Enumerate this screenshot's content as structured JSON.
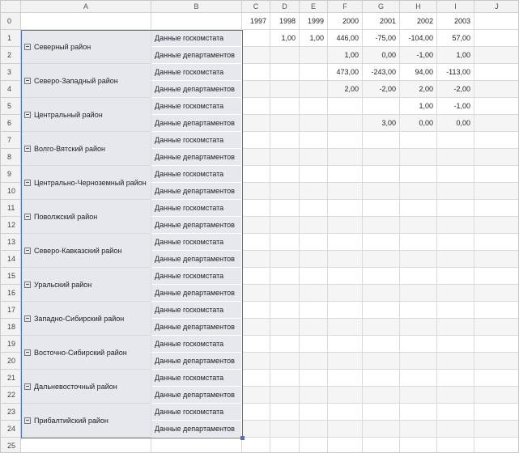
{
  "columns": [
    "A",
    "B",
    "C",
    "D",
    "E",
    "F",
    "G",
    "H",
    "I",
    "J"
  ],
  "row_numbers": [
    0,
    1,
    2,
    3,
    4,
    5,
    6,
    7,
    8,
    9,
    10,
    11,
    12,
    13,
    14,
    15,
    16,
    17,
    18,
    19,
    20,
    21,
    22,
    23,
    24,
    25
  ],
  "years": [
    1997,
    1998,
    1999,
    2000,
    2001,
    2002,
    2003
  ],
  "regions": [
    {
      "name": "Северный район",
      "rows": [
        {
          "source": "Данные госкомстата",
          "values": [
            null,
            "1,00",
            "1,00",
            "446,00",
            "-75,00",
            "-104,00",
            "57,00"
          ]
        },
        {
          "source": "Данные департаментов",
          "values": [
            null,
            null,
            null,
            "1,00",
            "0,00",
            "-1,00",
            "1,00"
          ]
        }
      ]
    },
    {
      "name": "Северо-Западный район",
      "rows": [
        {
          "source": "Данные госкомстата",
          "values": [
            null,
            null,
            null,
            "473,00",
            "-243,00",
            "94,00",
            "-113,00"
          ]
        },
        {
          "source": "Данные департаментов",
          "values": [
            null,
            null,
            null,
            "2,00",
            "-2,00",
            "2,00",
            "-2,00"
          ]
        }
      ]
    },
    {
      "name": "Центральный район",
      "rows": [
        {
          "source": "Данные госкомстата",
          "values": [
            null,
            null,
            null,
            null,
            null,
            "1,00",
            "-1,00"
          ]
        },
        {
          "source": "Данные департаментов",
          "values": [
            null,
            null,
            null,
            null,
            "3,00",
            "0,00",
            "0,00"
          ]
        }
      ]
    },
    {
      "name": "Волго-Вятский район",
      "rows": [
        {
          "source": "Данные госкомстата",
          "values": [
            null,
            null,
            null,
            null,
            null,
            null,
            null
          ]
        },
        {
          "source": "Данные департаментов",
          "values": [
            null,
            null,
            null,
            null,
            null,
            null,
            null
          ]
        }
      ]
    },
    {
      "name": "Центрально-Черноземный район",
      "rows": [
        {
          "source": "Данные госкомстата",
          "values": [
            null,
            null,
            null,
            null,
            null,
            null,
            null
          ]
        },
        {
          "source": "Данные департаментов",
          "values": [
            null,
            null,
            null,
            null,
            null,
            null,
            null
          ]
        }
      ]
    },
    {
      "name": "Поволжский район",
      "rows": [
        {
          "source": "Данные госкомстата",
          "values": [
            null,
            null,
            null,
            null,
            null,
            null,
            null
          ]
        },
        {
          "source": "Данные департаментов",
          "values": [
            null,
            null,
            null,
            null,
            null,
            null,
            null
          ]
        }
      ]
    },
    {
      "name": "Северо-Кавказский район",
      "rows": [
        {
          "source": "Данные госкомстата",
          "values": [
            null,
            null,
            null,
            null,
            null,
            null,
            null
          ]
        },
        {
          "source": "Данные департаментов",
          "values": [
            null,
            null,
            null,
            null,
            null,
            null,
            null
          ]
        }
      ]
    },
    {
      "name": "Уральский район",
      "rows": [
        {
          "source": "Данные госкомстата",
          "values": [
            null,
            null,
            null,
            null,
            null,
            null,
            null
          ]
        },
        {
          "source": "Данные департаментов",
          "values": [
            null,
            null,
            null,
            null,
            null,
            null,
            null
          ]
        }
      ]
    },
    {
      "name": "Западно-Сибирский район",
      "rows": [
        {
          "source": "Данные госкомстата",
          "values": [
            null,
            null,
            null,
            null,
            null,
            null,
            null
          ]
        },
        {
          "source": "Данные департаментов",
          "values": [
            null,
            null,
            null,
            null,
            null,
            null,
            null
          ]
        }
      ]
    },
    {
      "name": "Восточно-Сибирский район",
      "rows": [
        {
          "source": "Данные госкомстата",
          "values": [
            null,
            null,
            null,
            null,
            null,
            null,
            null
          ]
        },
        {
          "source": "Данные департаментов",
          "values": [
            null,
            null,
            null,
            null,
            null,
            null,
            null
          ]
        }
      ]
    },
    {
      "name": "Дальневосточный район",
      "rows": [
        {
          "source": "Данные госкомстата",
          "values": [
            null,
            null,
            null,
            null,
            null,
            null,
            null
          ]
        },
        {
          "source": "Данные департаментов",
          "values": [
            null,
            null,
            null,
            null,
            null,
            null,
            null
          ]
        }
      ]
    },
    {
      "name": "Прибалтийский район",
      "rows": [
        {
          "source": "Данные госкомстата",
          "values": [
            null,
            null,
            null,
            null,
            null,
            null,
            null
          ]
        },
        {
          "source": "Данные департаментов",
          "values": [
            null,
            null,
            null,
            null,
            null,
            null,
            null
          ]
        }
      ]
    }
  ]
}
